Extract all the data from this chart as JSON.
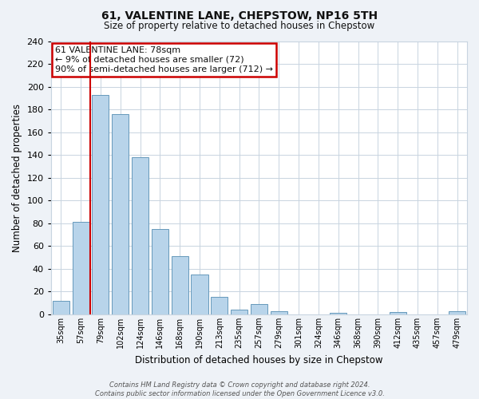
{
  "title": "61, VALENTINE LANE, CHEPSTOW, NP16 5TH",
  "subtitle": "Size of property relative to detached houses in Chepstow",
  "xlabel": "Distribution of detached houses by size in Chepstow",
  "ylabel": "Number of detached properties",
  "bar_labels": [
    "35sqm",
    "57sqm",
    "79sqm",
    "102sqm",
    "124sqm",
    "146sqm",
    "168sqm",
    "190sqm",
    "213sqm",
    "235sqm",
    "257sqm",
    "279sqm",
    "301sqm",
    "324sqm",
    "346sqm",
    "368sqm",
    "390sqm",
    "412sqm",
    "435sqm",
    "457sqm",
    "479sqm"
  ],
  "bar_values": [
    12,
    81,
    193,
    176,
    138,
    75,
    51,
    35,
    15,
    4,
    9,
    3,
    0,
    0,
    1,
    0,
    0,
    2,
    0,
    0,
    3
  ],
  "bar_color": "#b8d4ea",
  "bar_edge_color": "#6699bb",
  "vline_index": 2,
  "vline_color": "#cc0000",
  "ylim": [
    0,
    240
  ],
  "yticks": [
    0,
    20,
    40,
    60,
    80,
    100,
    120,
    140,
    160,
    180,
    200,
    220,
    240
  ],
  "ann_line1": "61 VALENTINE LANE: 78sqm",
  "ann_line2": "← 9% of detached houses are smaller (72)",
  "ann_line3": "90% of semi-detached houses are larger (712) →",
  "annotation_box_color": "#cc0000",
  "footer_text": "Contains HM Land Registry data © Crown copyright and database right 2024.\nContains public sector information licensed under the Open Government Licence v3.0.",
  "bg_color": "#eef2f7",
  "plot_bg_color": "#ffffff",
  "grid_color": "#c8d4e0"
}
